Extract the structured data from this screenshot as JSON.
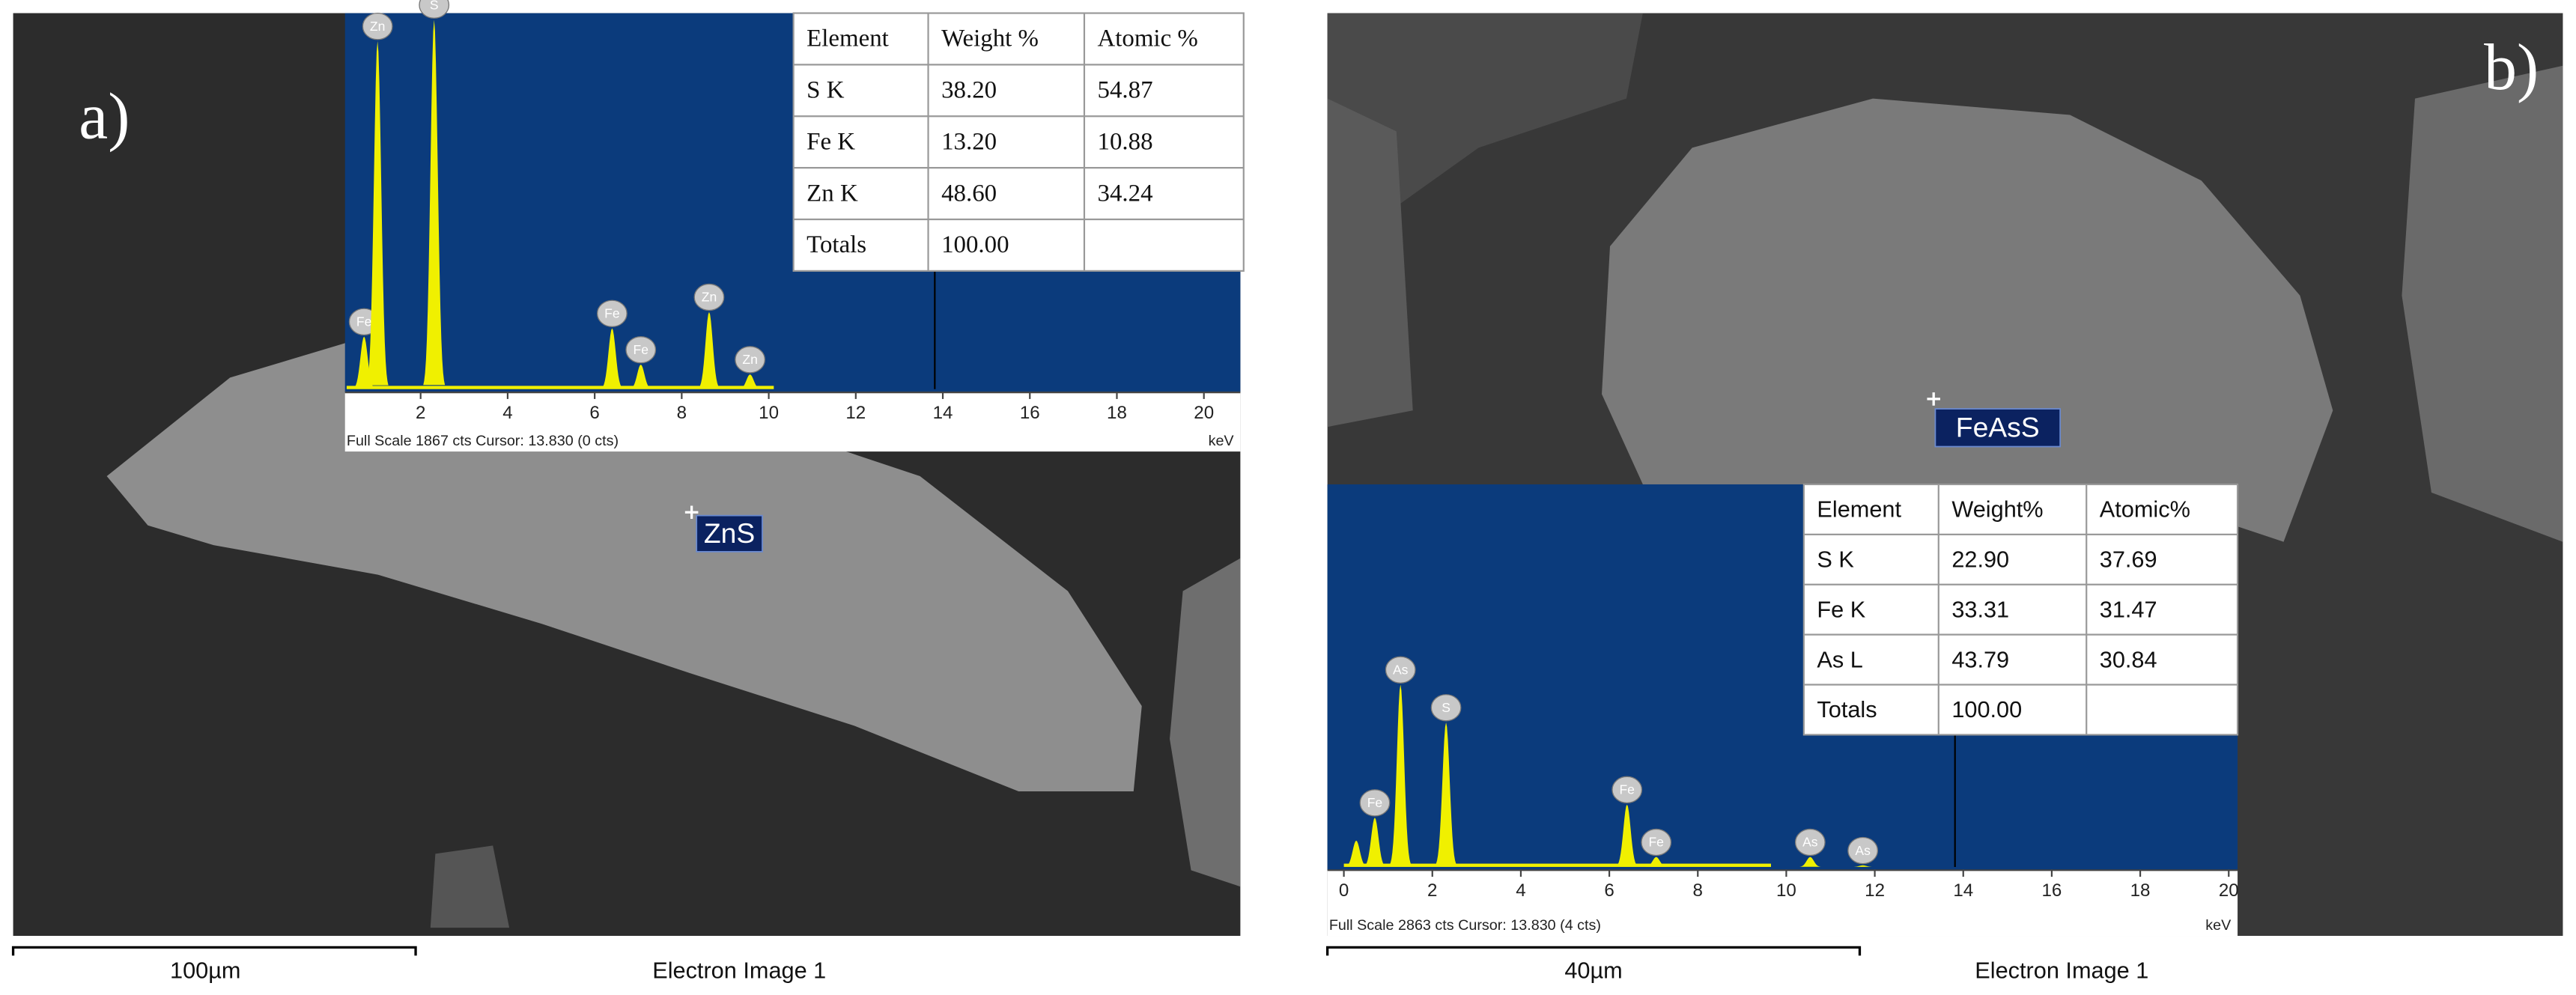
{
  "chart_data": [
    {
      "type": "spectrum",
      "xlabel": "keV",
      "footer": "Full Scale 1867 cts Cursor: 13.830  (0 cts)",
      "x": [
        0.7,
        1.01,
        2.31,
        6.4,
        7.06,
        8.63,
        9.57
      ],
      "values": [
        261,
        1728,
        1834,
        302,
        122,
        383,
        73
      ],
      "peak_labels": [
        "Fe",
        "Zn",
        "S",
        "Fe",
        "Fe",
        "Zn",
        "Zn"
      ],
      "color": "#f0f000",
      "xlim": [
        0.3,
        20.8
      ],
      "ylim": [
        0,
        1867
      ],
      "xticks": [
        2,
        4,
        6,
        8,
        10,
        12,
        14,
        16,
        18,
        20
      ]
    },
    {
      "type": "spectrum",
      "xlabel": "keV",
      "footer": "Full Scale 2863 cts Cursor: 13.830  (4 cts)",
      "x": [
        0.28,
        0.7,
        1.28,
        2.31,
        6.4,
        7.06,
        10.54,
        11.73
      ],
      "values": [
        197,
        369,
        1364,
        1081,
        467,
        74,
        74,
        12
      ],
      "peak_labels": [
        null,
        "Fe",
        "As",
        "S",
        "Fe",
        "Fe",
        "As",
        "As"
      ],
      "color": "#f0f000",
      "xlim": [
        0,
        20.2
      ],
      "ylim": [
        0,
        2863
      ],
      "xticks": [
        0,
        2,
        4,
        6,
        8,
        10,
        12,
        14,
        16,
        18,
        20
      ]
    }
  ],
  "panels": [
    {
      "label": "a)",
      "marker": "ZnS",
      "table": {
        "header": [
          "Element",
          "Weight %",
          "Atomic %"
        ],
        "rows": [
          [
            "S K",
            "38.20",
            "54.87"
          ],
          [
            "Fe K",
            "13.20",
            "10.88"
          ],
          [
            "Zn K",
            "48.60",
            "34.24"
          ],
          [
            "Totals",
            "100.00"
          ]
        ]
      },
      "scale_bar": "100µm",
      "image_label": "Electron Image 1"
    },
    {
      "label": "b)",
      "marker": "FeAsS",
      "table": {
        "header": [
          "Element",
          "Weight%",
          "Atomic%"
        ],
        "rows": [
          [
            "S K",
            "22.90",
            "37.69"
          ],
          [
            "Fe K",
            "33.31",
            "31.47"
          ],
          [
            "As L",
            "43.79",
            "30.84"
          ],
          [
            "Totals",
            "100.00"
          ]
        ]
      },
      "scale_bar": "40µm",
      "image_label": "Electron Image 1"
    }
  ]
}
